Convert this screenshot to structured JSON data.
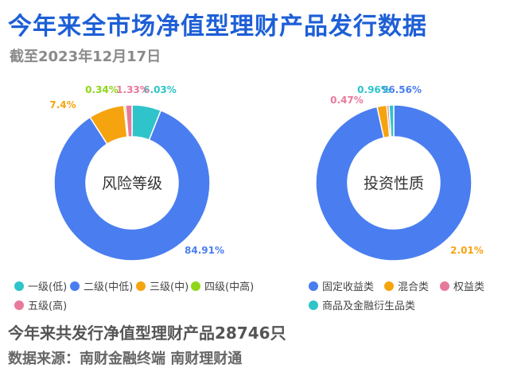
{
  "header": {
    "title": "今年来全市场净值型理财产品发行数据",
    "date": "截至2023年12月17日"
  },
  "chart_data": [
    {
      "type": "pie",
      "donut": true,
      "center_label": "风险等级",
      "categories": [
        "一级(低)",
        "二级(中低)",
        "三级(中)",
        "四级(中高)",
        "五级(高)"
      ],
      "values": [
        6.03,
        84.91,
        7.4,
        0.34,
        1.33
      ],
      "value_labels": [
        "6.03%",
        "84.91%",
        "7.4%",
        "0.34%",
        "1.33%"
      ],
      "colors": [
        "#2ec4c9",
        "#4a7ef0",
        "#f5a40f",
        "#8fd61a",
        "#e77a9b"
      ],
      "legend_position": "bottom"
    },
    {
      "type": "pie",
      "donut": true,
      "center_label": "投资性质",
      "categories": [
        "固定收益类",
        "混合类",
        "权益类",
        "商品及金融衍生品类"
      ],
      "values": [
        96.56,
        2.01,
        0.47,
        0.96
      ],
      "value_labels": [
        "96.56%",
        "2.01%",
        "0.47%",
        "0.96%"
      ],
      "colors": [
        "#4a7ef0",
        "#f5a40f",
        "#e77a9b",
        "#2ec4c9"
      ],
      "legend_position": "bottom"
    }
  ],
  "footer": {
    "total": "今年来共发行净值型理财产品28746只",
    "source": "数据来源：南财金融终端 南财理财通"
  }
}
